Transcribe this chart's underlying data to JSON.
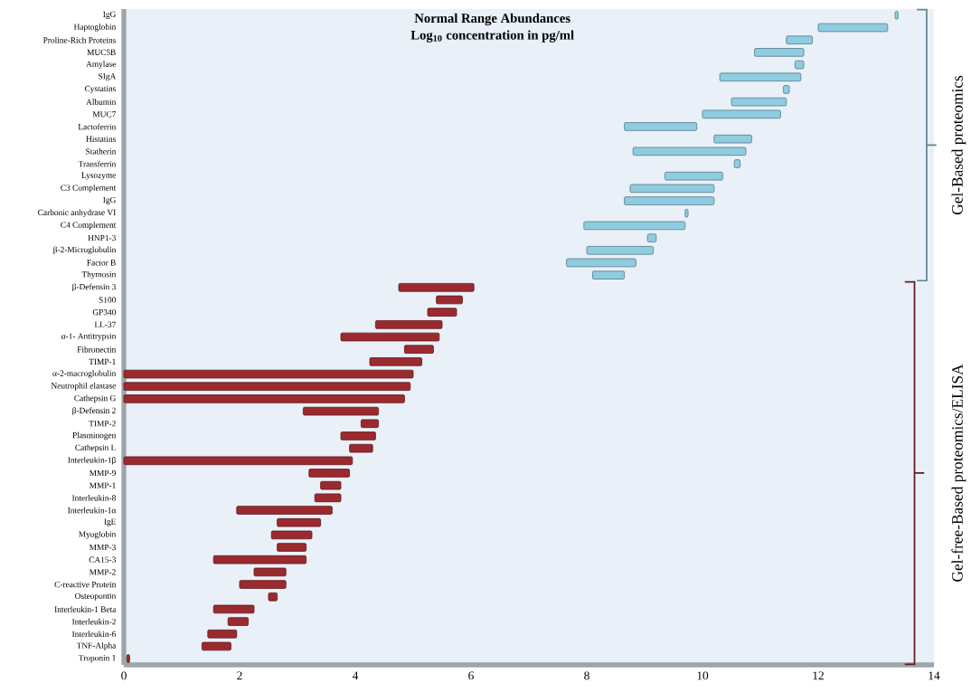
{
  "chart_data": {
    "type": "bar",
    "orientation": "horizontal",
    "title": "Normal Range Abundances",
    "subtitle": "Log$_{10}$ concentration in pg/ml",
    "categories": [
      "IgG",
      "Haptoglobin",
      "Proline-Rich Proteins",
      "MUC5B",
      "Amylase",
      "SIgA",
      "Cystatins",
      "Albumin",
      "MUC7",
      "Lactoferrin",
      "Histatins",
      "Statherin",
      "Transferrin",
      "Lysozyme",
      "C3 Complement",
      "IgG",
      "Carbonic anhydrase VI",
      "C4 Complement",
      "HNP1-3",
      "β-2-Microglobulin",
      "Factor B",
      "Thymosin",
      "β-Defensin 3",
      "S100",
      "GP340",
      "LL-37",
      "α-1- Antitrypsin",
      "Fibronectin",
      "TIMP-1",
      "α-2-macroglobulin",
      "Neutrophil elastase",
      "Cathepsin G",
      "β-Defensin 2",
      "TIMP-2",
      "Plasminogen",
      "Cathepsin L",
      "Interleukin-1β",
      "MMP-9",
      "MMP-1",
      "Interleukin-8",
      "Interleukin-1α",
      "IgE",
      "Myoglobin",
      "MMP-3",
      "CA15-3",
      "MMP-2",
      "C-reactive Protein",
      "Osteopontin",
      "Interleukin-1 Beta",
      "Interleukin-2",
      "Interleukin-6",
      "TNF-Alpha",
      "Troponin 1"
    ],
    "series": [
      {
        "name": "Gel-Based proteomics",
        "color": "#90cce0",
        "base": [
          13.33,
          12.0,
          11.45,
          10.9,
          11.6,
          10.3,
          11.4,
          10.5,
          10.0,
          8.65,
          10.2,
          8.8,
          10.55,
          9.35,
          8.75,
          8.65,
          9.7,
          7.95,
          9.05,
          8.0,
          7.65,
          8.1,
          null,
          null,
          null,
          null,
          null,
          null,
          null,
          null,
          null,
          null,
          null,
          null,
          null,
          null,
          null,
          null,
          null,
          null,
          null,
          null,
          null,
          null,
          null,
          null,
          null,
          null,
          null,
          null,
          null,
          null,
          null
        ],
        "values": [
          0.05,
          1.2,
          0.45,
          0.85,
          0.15,
          1.4,
          0.1,
          0.95,
          1.35,
          1.25,
          0.65,
          1.95,
          0.1,
          1.0,
          1.45,
          1.55,
          0.05,
          1.75,
          0.15,
          1.15,
          1.2,
          0.55,
          null,
          null,
          null,
          null,
          null,
          null,
          null,
          null,
          null,
          null,
          null,
          null,
          null,
          null,
          null,
          null,
          null,
          null,
          null,
          null,
          null,
          null,
          null,
          null,
          null,
          null,
          null,
          null,
          null,
          null,
          null
        ]
      },
      {
        "name": "Gel-free-Based proteomics/ELISA",
        "color": "#9b2a2e",
        "base": [
          null,
          null,
          null,
          null,
          null,
          null,
          null,
          null,
          null,
          null,
          null,
          null,
          null,
          null,
          null,
          null,
          null,
          null,
          null,
          null,
          null,
          null,
          4.75,
          5.4,
          5.25,
          4.35,
          3.75,
          4.85,
          4.25,
          0,
          0,
          0,
          3.1,
          4.1,
          3.75,
          3.9,
          0,
          3.2,
          3.4,
          3.3,
          1.95,
          2.65,
          2.55,
          2.65,
          1.55,
          2.25,
          2.0,
          2.5,
          1.55,
          1.8,
          1.45,
          1.35,
          0.05
        ],
        "values": [
          null,
          null,
          null,
          null,
          null,
          null,
          null,
          null,
          null,
          null,
          null,
          null,
          null,
          null,
          null,
          null,
          null,
          null,
          null,
          null,
          null,
          null,
          1.3,
          0.45,
          0.5,
          1.15,
          1.7,
          0.5,
          0.9,
          5.0,
          4.95,
          4.85,
          1.3,
          0.3,
          0.6,
          0.4,
          3.95,
          0.7,
          0.35,
          0.45,
          1.65,
          0.75,
          0.7,
          0.5,
          1.6,
          0.55,
          0.8,
          0.15,
          0.7,
          0.35,
          0.5,
          0.5,
          0.05
        ]
      }
    ],
    "legend": "right",
    "xlim": [
      0,
      14
    ],
    "xticks": [
      0,
      2,
      4,
      6,
      8,
      10,
      12,
      14
    ]
  }
}
